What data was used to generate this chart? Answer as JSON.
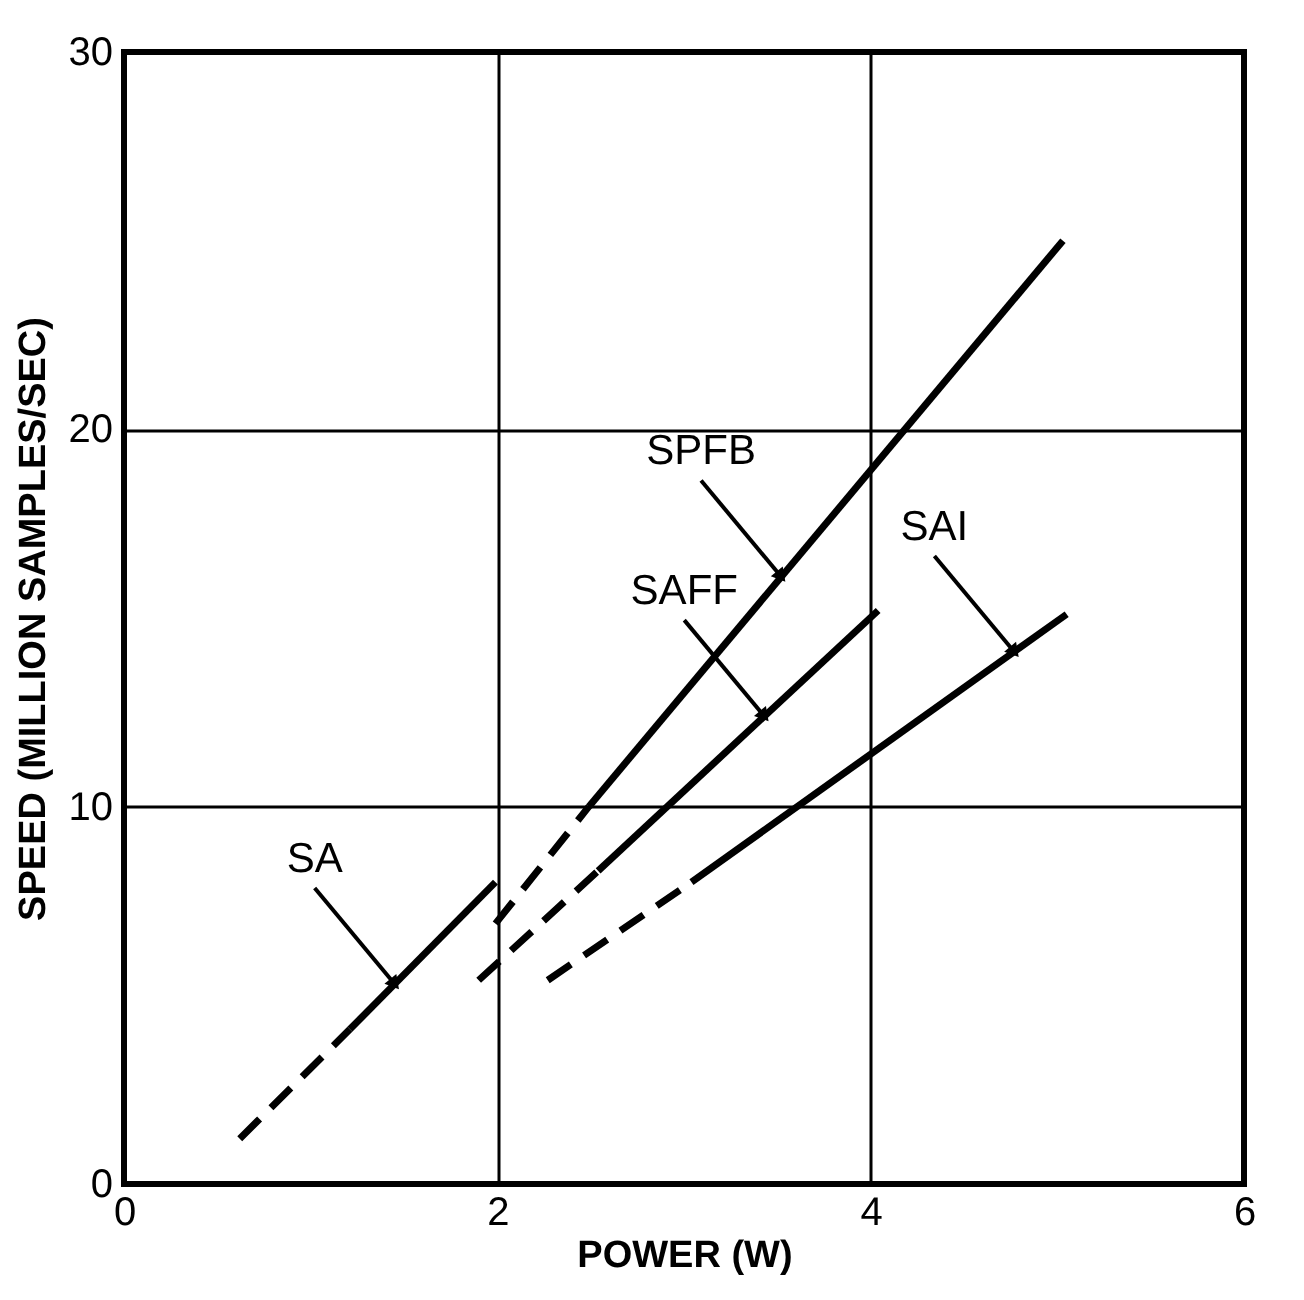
{
  "chart_data": {
    "type": "line",
    "xlabel": "POWER (W)",
    "ylabel": "SPEED (MILLION SAMPLES/SEC)",
    "xlim": [
      0,
      6
    ],
    "ylim": [
      0,
      30
    ],
    "xticks": [
      0,
      2,
      4,
      6
    ],
    "yticks": [
      0,
      10,
      20,
      30
    ],
    "grid": true,
    "marker": "none",
    "series": [
      {
        "color": "#000000",
        "line_style": "dashed",
        "x": [
          0.62,
          1.21
        ],
        "values": [
          1.2,
          4.1
        ]
      },
      {
        "color": "#000000",
        "line_style": "solid",
        "x": [
          1.21,
          1.99
        ],
        "values": [
          4.1,
          8.0
        ]
      },
      {
        "color": "#000000",
        "line_style": "dashed",
        "x": [
          1.99,
          2.49
        ],
        "values": [
          6.9,
          10.0
        ]
      },
      {
        "color": "#000000",
        "line_style": "solid",
        "x": [
          2.49,
          5.03
        ],
        "values": [
          10.0,
          25.0
        ]
      },
      {
        "color": "#000000",
        "line_style": "dashed",
        "x": [
          1.9,
          2.54
        ],
        "values": [
          5.4,
          8.3
        ]
      },
      {
        "color": "#000000",
        "line_style": "solid",
        "x": [
          2.54,
          4.04
        ],
        "values": [
          8.3,
          15.2
        ]
      },
      {
        "color": "#000000",
        "line_style": "dashed",
        "x": [
          2.27,
          3.04
        ],
        "values": [
          5.4,
          8.0
        ]
      },
      {
        "color": "#000000",
        "line_style": "solid",
        "x": [
          3.04,
          5.05
        ],
        "values": [
          8.0,
          15.1
        ]
      }
    ],
    "annotations": [
      {
        "text": "SA",
        "x": 1.45,
        "y": 5.3
      },
      {
        "text": "SPFB",
        "x": 3.52,
        "y": 16.1
      },
      {
        "text": "SAFF",
        "x": 3.43,
        "y": 12.4
      },
      {
        "text": "SAI",
        "x": 4.77,
        "y": 14.1
      }
    ]
  }
}
